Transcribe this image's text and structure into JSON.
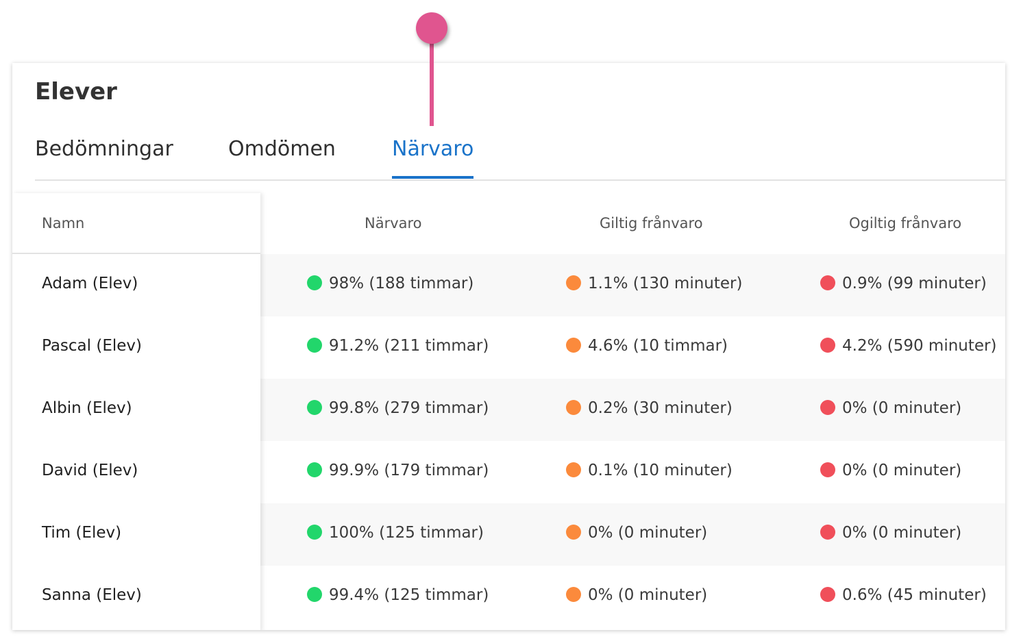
{
  "header": {
    "title": "Elever"
  },
  "tabs": [
    {
      "label": "Bedömningar",
      "active": false
    },
    {
      "label": "Omdömen",
      "active": false
    },
    {
      "label": "Närvaro",
      "active": true
    }
  ],
  "colors": {
    "accent": "#1a73c9",
    "marker": "#e0558f",
    "present": "#22d66b",
    "valid_absence": "#fb8a3c",
    "invalid_absence": "#f04f5a"
  },
  "table": {
    "columns": [
      "Namn",
      "Närvaro",
      "Giltig frånvaro",
      "Ogiltig frånvaro"
    ],
    "rows": [
      {
        "name": "Adam (Elev)",
        "presence": "98% (188 timmar)",
        "valid": "1.1% (130 minuter)",
        "invalid": "0.9% (99 minuter)"
      },
      {
        "name": "Pascal (Elev)",
        "presence": "91.2% (211 timmar)",
        "valid": "4.6% (10 timmar)",
        "invalid": "4.2% (590 minuter)"
      },
      {
        "name": "Albin (Elev)",
        "presence": "99.8% (279 timmar)",
        "valid": "0.2% (30 minuter)",
        "invalid": "0% (0 minuter)"
      },
      {
        "name": "David (Elev)",
        "presence": "99.9% (179 timmar)",
        "valid": "0.1% (10 minuter)",
        "invalid": "0% (0 minuter)"
      },
      {
        "name": "Tim (Elev)",
        "presence": "100% (125 timmar)",
        "valid": "0% (0 minuter)",
        "invalid": "0% (0 minuter)"
      },
      {
        "name": "Sanna (Elev)",
        "presence": "99.4% (125 timmar)",
        "valid": "0% (0 minuter)",
        "invalid": "0.6% (45 minuter)"
      }
    ]
  }
}
